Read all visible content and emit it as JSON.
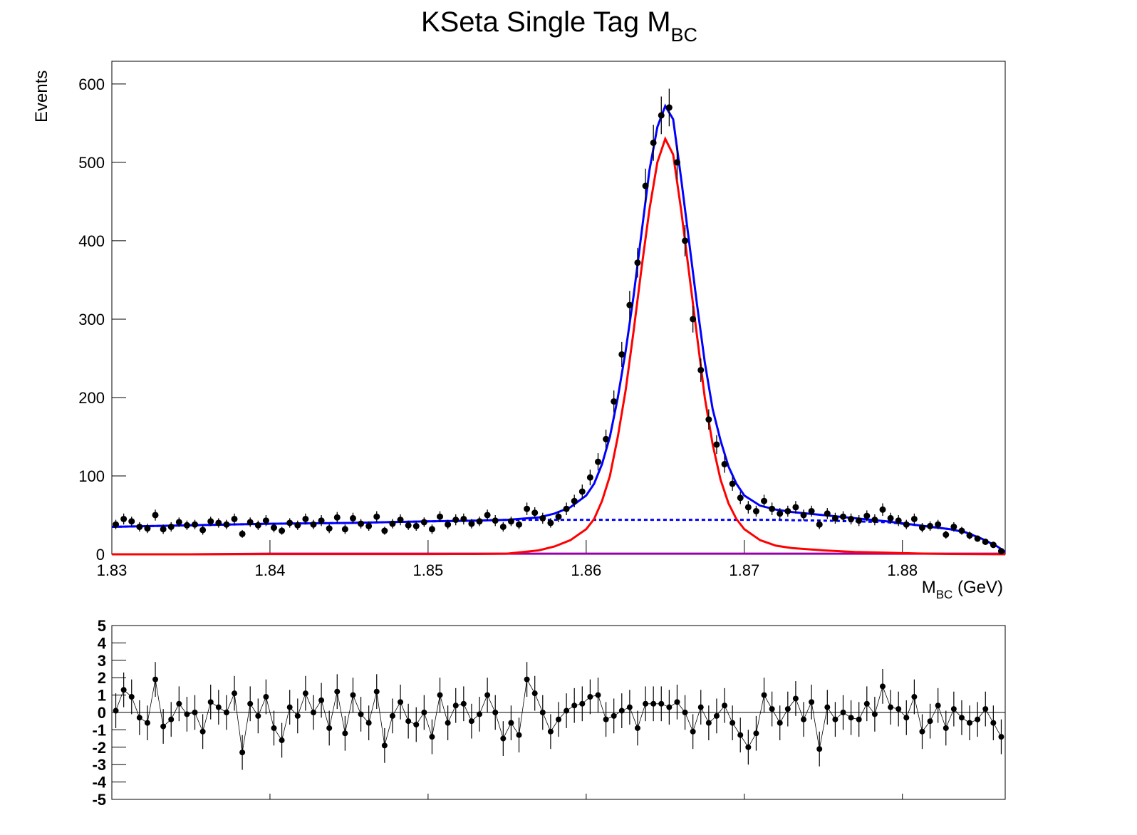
{
  "chart_data": {
    "type": "fit",
    "title": {
      "text": "KSeta Single Tag M",
      "subscript": "BC"
    },
    "x_label": {
      "text": "M",
      "subscript": "BC",
      "suffix": " (GeV)"
    },
    "y_label": "Events",
    "xlim": [
      1.83,
      1.8865
    ],
    "xticks": [
      1.83,
      1.84,
      1.85,
      1.86,
      1.87,
      1.88
    ],
    "ylim": [
      0,
      629
    ],
    "yticks": [
      0,
      100,
      200,
      300,
      400,
      500,
      600
    ],
    "pull_ylim": [
      -5,
      5
    ],
    "pull_yticks": [
      -5,
      -4,
      -3,
      -2,
      -1,
      0,
      1,
      2,
      3,
      4,
      5
    ],
    "pull_error": 1,
    "marker_color": "#000000",
    "x": [
      1.83025,
      1.83075,
      1.83125,
      1.83175,
      1.83225,
      1.83275,
      1.83325,
      1.83375,
      1.83425,
      1.83475,
      1.83525,
      1.83575,
      1.83625,
      1.83675,
      1.83725,
      1.83775,
      1.83825,
      1.83875,
      1.83925,
      1.83975,
      1.84025,
      1.84075,
      1.84125,
      1.84175,
      1.84225,
      1.84275,
      1.84325,
      1.84375,
      1.84425,
      1.84475,
      1.84525,
      1.84575,
      1.84625,
      1.84675,
      1.84725,
      1.84775,
      1.84825,
      1.84875,
      1.84925,
      1.84975,
      1.85025,
      1.85075,
      1.85125,
      1.85175,
      1.85225,
      1.85275,
      1.85325,
      1.85375,
      1.85425,
      1.85475,
      1.85525,
      1.85575,
      1.85625,
      1.85675,
      1.85725,
      1.85775,
      1.85825,
      1.85875,
      1.85925,
      1.85975,
      1.86025,
      1.86075,
      1.86125,
      1.86175,
      1.86225,
      1.86275,
      1.86325,
      1.86375,
      1.86425,
      1.86475,
      1.86525,
      1.86575,
      1.86625,
      1.86675,
      1.86725,
      1.86775,
      1.86825,
      1.86875,
      1.86925,
      1.86975,
      1.87025,
      1.87075,
      1.87125,
      1.87175,
      1.87225,
      1.87275,
      1.87325,
      1.87375,
      1.87425,
      1.87475,
      1.87525,
      1.87575,
      1.87625,
      1.87675,
      1.87725,
      1.87775,
      1.87825,
      1.87875,
      1.87925,
      1.87975,
      1.88025,
      1.88075,
      1.88125,
      1.88175,
      1.88225,
      1.88275,
      1.88325,
      1.88375,
      1.88425,
      1.88475,
      1.88525,
      1.88575,
      1.88625
    ],
    "values": [
      38,
      45,
      42,
      35,
      33,
      50,
      32,
      35,
      41,
      37,
      38,
      31,
      42,
      40,
      38,
      45,
      26,
      41,
      37,
      43,
      34,
      30,
      40,
      37,
      45,
      38,
      43,
      33,
      47,
      32,
      46,
      39,
      36,
      48,
      30,
      39,
      44,
      37,
      36,
      41,
      32,
      48,
      38,
      44,
      45,
      39,
      42,
      50,
      43,
      35,
      42,
      38,
      58,
      53,
      46,
      40,
      48,
      58,
      68,
      80,
      98,
      118,
      147,
      195,
      255,
      318,
      372,
      470,
      525,
      560,
      570,
      500,
      400,
      300,
      235,
      172,
      140,
      115,
      90,
      72,
      60,
      55,
      68,
      58,
      52,
      55,
      60,
      50,
      55,
      38,
      52,
      46,
      48,
      45,
      43,
      49,
      44,
      57,
      46,
      43,
      38,
      45,
      34,
      36,
      38,
      25,
      35,
      30,
      24,
      20,
      16,
      12,
      4
    ],
    "errors": [
      6,
      7,
      6,
      6,
      6,
      7,
      6,
      6,
      6,
      6,
      6,
      6,
      6,
      6,
      6,
      7,
      5,
      6,
      6,
      7,
      6,
      5,
      6,
      6,
      7,
      6,
      7,
      6,
      7,
      6,
      7,
      6,
      6,
      7,
      5,
      6,
      7,
      6,
      6,
      6,
      6,
      7,
      6,
      7,
      7,
      6,
      6,
      7,
      7,
      6,
      6,
      6,
      8,
      7,
      7,
      6,
      7,
      8,
      8,
      9,
      10,
      11,
      12,
      14,
      16,
      18,
      19,
      22,
      23,
      24,
      24,
      22,
      20,
      17,
      15,
      13,
      12,
      11,
      9,
      8,
      8,
      7,
      8,
      8,
      7,
      7,
      8,
      7,
      7,
      6,
      7,
      7,
      7,
      7,
      7,
      7,
      7,
      8,
      7,
      7,
      6,
      7,
      6,
      6,
      6,
      5,
      6,
      5,
      5,
      4,
      4,
      3,
      2
    ],
    "pulls": [
      0.1,
      1.3,
      0.9,
      -0.3,
      -0.6,
      1.9,
      -0.8,
      -0.4,
      0.5,
      -0.1,
      0,
      -1.1,
      0.6,
      0.3,
      0,
      1.1,
      -2.3,
      0.5,
      -0.2,
      0.9,
      -0.9,
      -1.6,
      0.3,
      -0.2,
      1.1,
      0,
      0.7,
      -0.9,
      1.2,
      -1.2,
      1.0,
      -0.1,
      -0.6,
      1.2,
      -1.9,
      -0.2,
      0.6,
      -0.5,
      -0.7,
      0,
      -1.4,
      1.0,
      -0.6,
      0.4,
      0.5,
      -0.5,
      -0.1,
      1.0,
      0,
      -1.5,
      -0.6,
      -1.3,
      1.9,
      1.1,
      0,
      -1.1,
      -0.4,
      0.1,
      0.4,
      0.5,
      0.9,
      1.0,
      -0.4,
      -0.2,
      0.1,
      0.3,
      -0.9,
      0.5,
      0.5,
      0.5,
      0.3,
      0.6,
      0,
      -1.1,
      0.3,
      -0.6,
      -0.2,
      0.4,
      -0.6,
      -1.3,
      -2.0,
      -1.2,
      1.0,
      0.2,
      -0.6,
      0.2,
      0.8,
      -0.4,
      0.6,
      -2.1,
      0.3,
      -0.4,
      0,
      -0.3,
      -0.4,
      0.5,
      -0.1,
      1.5,
      0.3,
      0.2,
      -0.3,
      0.9,
      -1.1,
      -0.5,
      0.4,
      -0.9,
      0.2,
      -0.3,
      -0.6,
      -0.4,
      0.2,
      -0.6,
      -1.4
    ],
    "curve_x": [
      1.83,
      1.835,
      1.84,
      1.845,
      1.85,
      1.853,
      1.855,
      1.857,
      1.858,
      1.859,
      1.86,
      1.8605,
      1.861,
      1.8615,
      1.862,
      1.8625,
      1.863,
      1.8635,
      1.864,
      1.8645,
      1.865,
      1.8655,
      1.866,
      1.8665,
      1.867,
      1.8675,
      1.868,
      1.8685,
      1.869,
      1.8695,
      1.87,
      1.871,
      1.872,
      1.873,
      1.875,
      1.877,
      1.879,
      1.881,
      1.883,
      1.884,
      1.885,
      1.886,
      1.8865
    ],
    "curves": [
      {
        "color": "#9900aa",
        "style": "solid",
        "values": [
          0,
          0,
          0.8,
          0.8,
          0.8,
          0.8,
          0.8,
          0.8,
          0.8,
          0.8,
          0.8,
          0.8,
          0.8,
          0.8,
          0.8,
          0.8,
          0.8,
          0.8,
          0.8,
          0.8,
          0.8,
          0.8,
          0.8,
          0.8,
          0.8,
          0.8,
          0.8,
          0.8,
          0.8,
          0.8,
          0.8,
          0.8,
          0.8,
          0.8,
          0.8,
          0.8,
          0.8,
          0.8,
          0.8,
          0.8,
          0.8,
          0.8,
          0.8
        ]
      },
      {
        "color": "#0000ff",
        "style": "dashed",
        "values": [
          35,
          37,
          39,
          40,
          42,
          43,
          44,
          44,
          44,
          44,
          44,
          44,
          44,
          44,
          44,
          44,
          44,
          44,
          44,
          44,
          44,
          44,
          44,
          44,
          44,
          44,
          44,
          44,
          44,
          44,
          44,
          44,
          44,
          43.5,
          43,
          42,
          41,
          37,
          32,
          28,
          20,
          10,
          3
        ]
      },
      {
        "color": "#ff0000",
        "style": "solid",
        "values": [
          0,
          0,
          0.3,
          0.3,
          0.3,
          0.5,
          0.8,
          5,
          10,
          18,
          32,
          45,
          68,
          100,
          150,
          210,
          285,
          365,
          440,
          500,
          530,
          510,
          440,
          360,
          280,
          200,
          140,
          95,
          65,
          45,
          32,
          18,
          11,
          8,
          5,
          3,
          2,
          1,
          0.5,
          0.3,
          0.2,
          0.1,
          0
        ]
      },
      {
        "color": "#0000ff",
        "style": "solid",
        "values": [
          35,
          37,
          39,
          40,
          42,
          43,
          44,
          47,
          52,
          60,
          75,
          90,
          115,
          150,
          200,
          260,
          330,
          410,
          490,
          545,
          572,
          555,
          480,
          400,
          320,
          245,
          185,
          145,
          112,
          90,
          75,
          62,
          57,
          54,
          50,
          46,
          42,
          37,
          32,
          28,
          20,
          10,
          3
        ]
      }
    ]
  }
}
